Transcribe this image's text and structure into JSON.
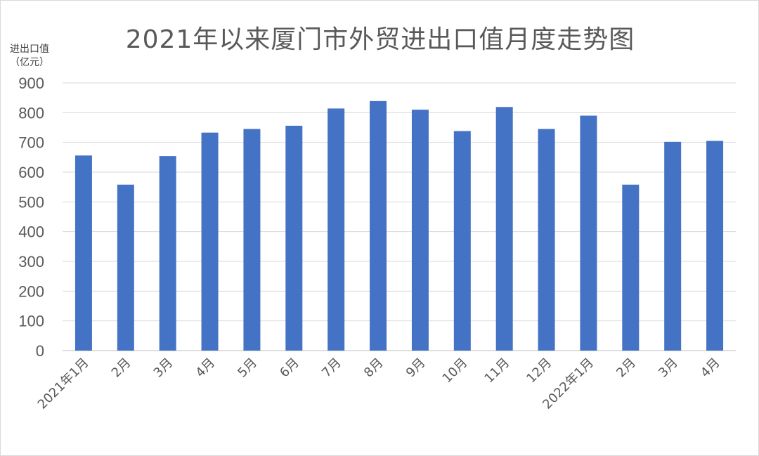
{
  "chart_data": {
    "type": "bar",
    "title": "2021年以来厦门市外贸进出口值月度走势图",
    "ylabel_lines": [
      "进出口值",
      "（亿元）"
    ],
    "xlabel": "",
    "categories": [
      "2021年1月",
      "2月",
      "3月",
      "4月",
      "5月",
      "6月",
      "7月",
      "8月",
      "9月",
      "10月",
      "11月",
      "12月",
      "2022年1月",
      "2月",
      "3月",
      "4月"
    ],
    "values": [
      656,
      558,
      654,
      733,
      745,
      756,
      814,
      839,
      810,
      738,
      819,
      745,
      790,
      558,
      702,
      705
    ],
    "ylim": [
      0,
      900
    ],
    "yticks": [
      0,
      100,
      200,
      300,
      400,
      500,
      600,
      700,
      800,
      900
    ],
    "grid": true,
    "colors": {
      "bar": "#4472c4",
      "grid": "#d9d9d9",
      "axis": "#bfbfbf",
      "text": "#595959"
    }
  }
}
